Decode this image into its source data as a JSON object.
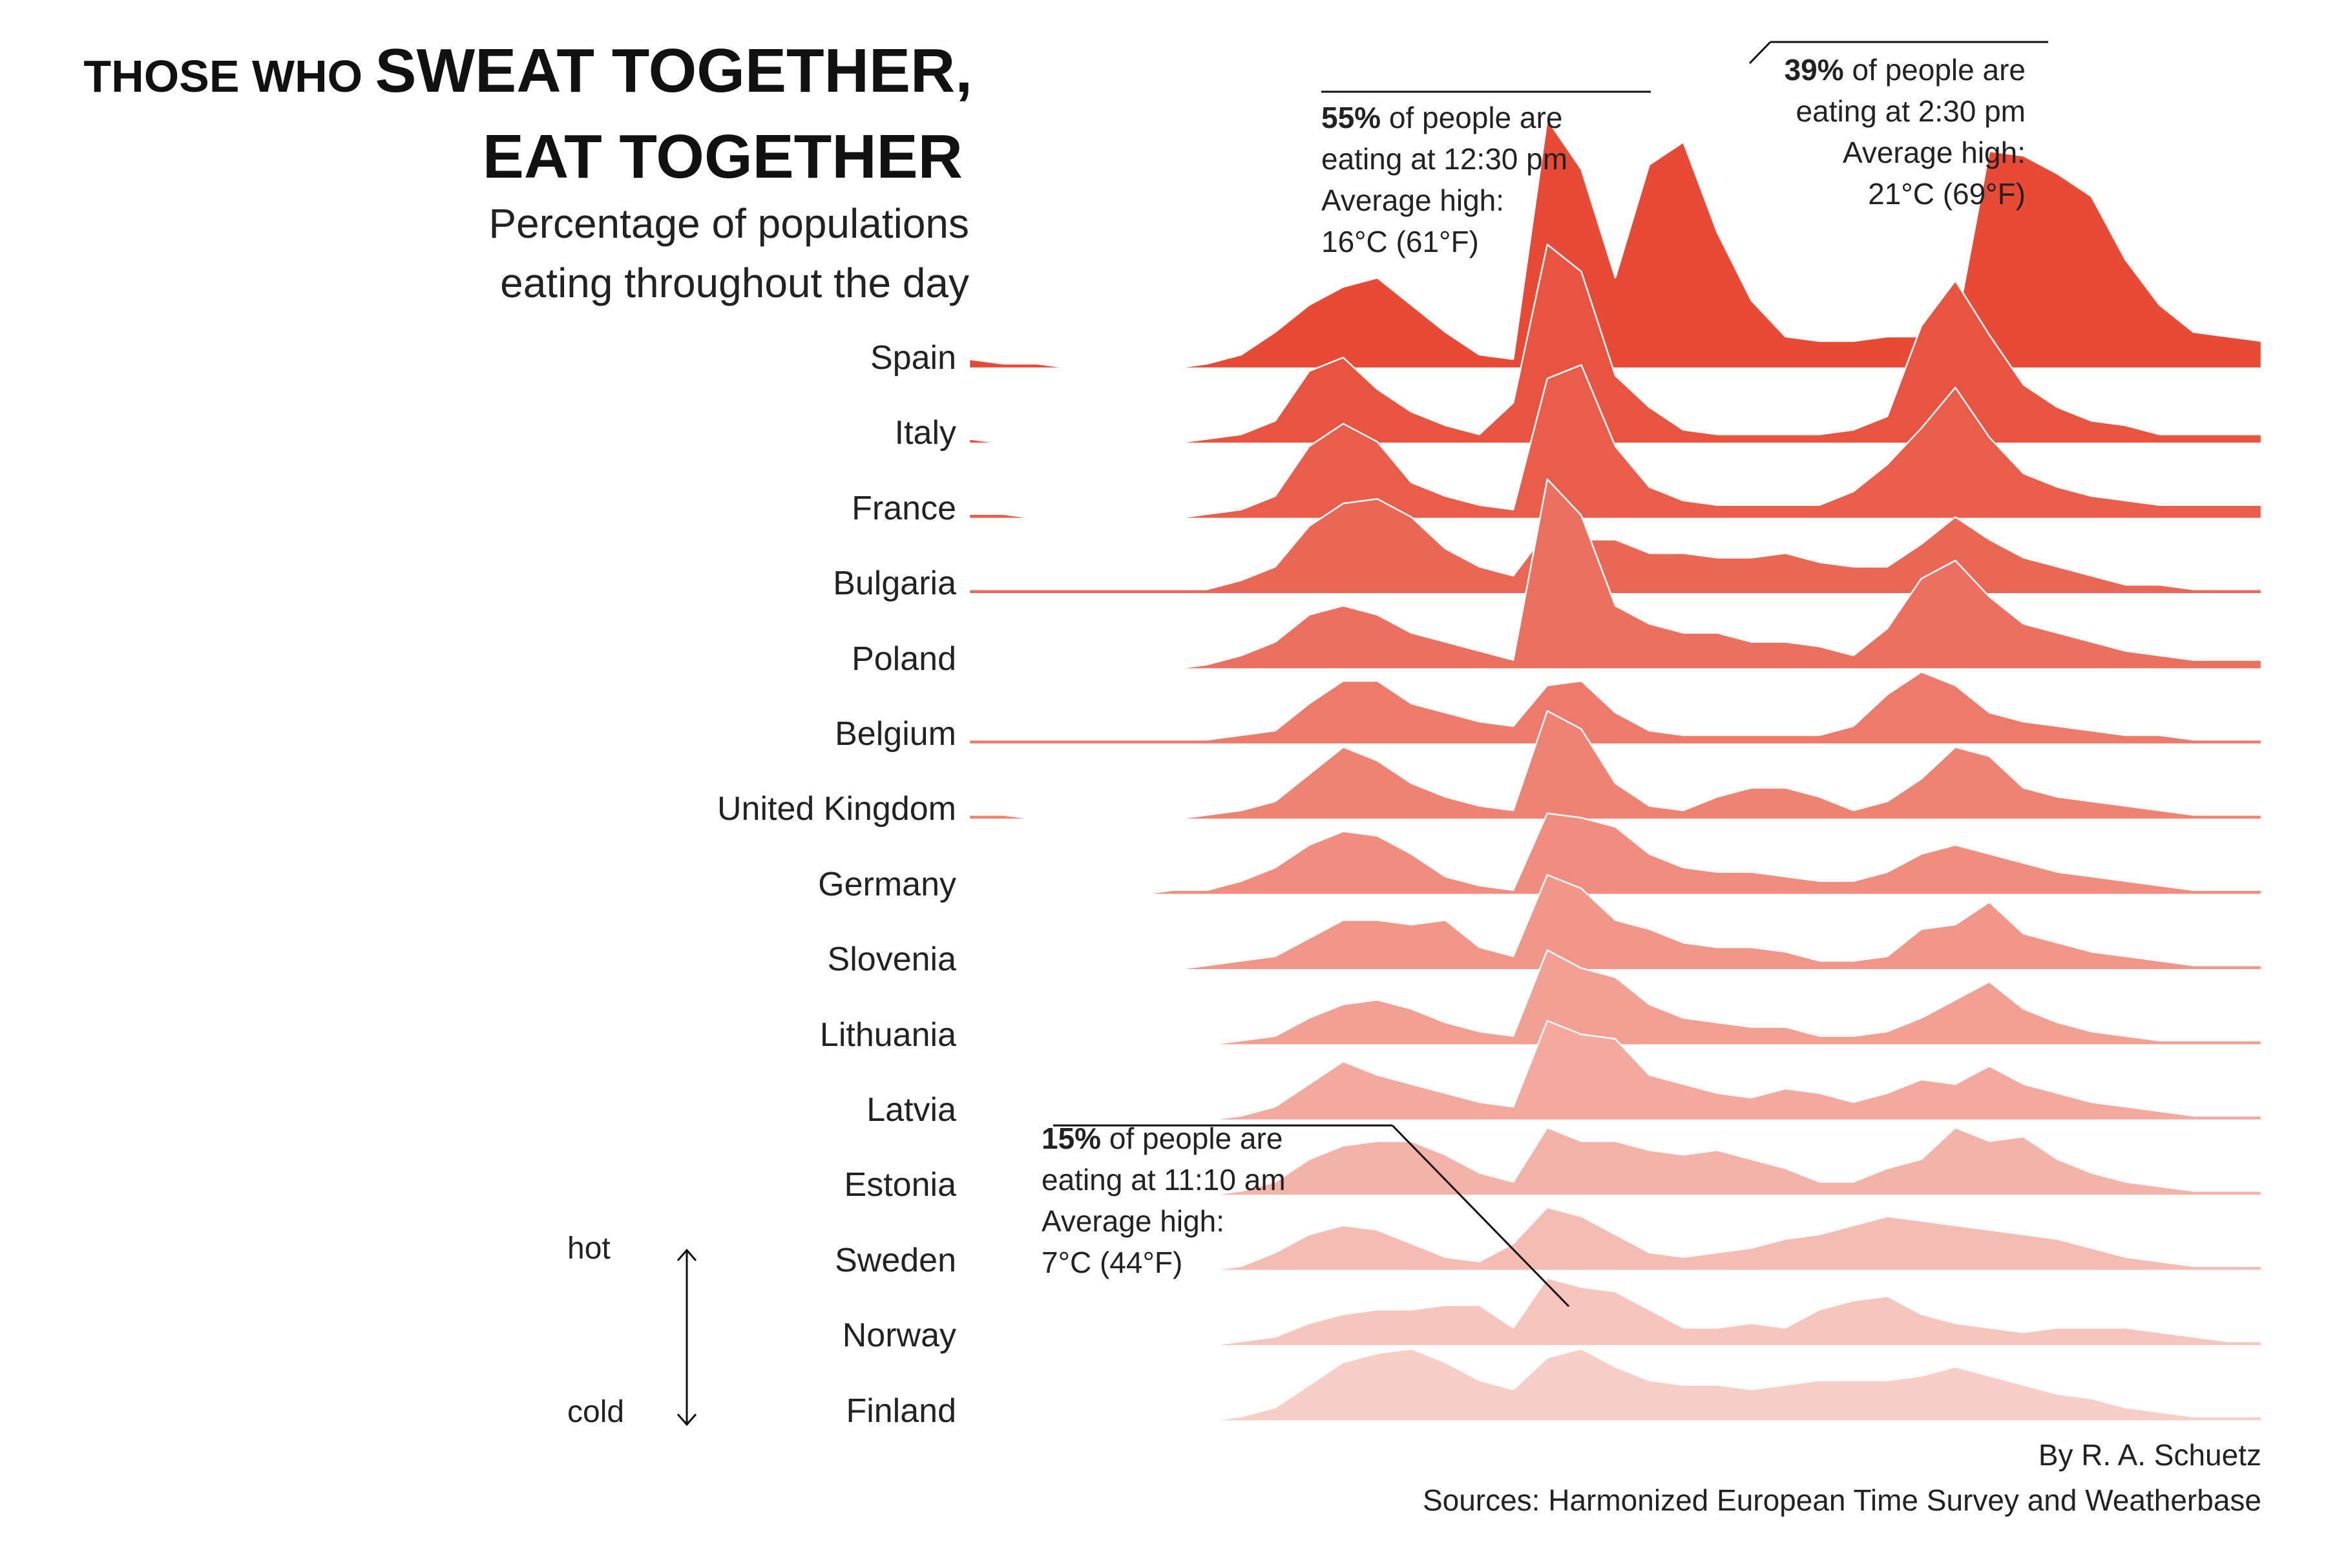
{
  "title": {
    "line1_small": "THOSE WHO ",
    "line1_big": "SWEAT TOGETHER,",
    "line2": "EAT TOGETHER"
  },
  "subtitle": {
    "line1": "Percentage of populations",
    "line2": "eating throughout the day"
  },
  "legend": {
    "hot": "hot",
    "cold": "cold"
  },
  "credits": {
    "author": "By R. A. Schuetz",
    "sources": "Sources: Harmonized European Time Survey and Weatherbase"
  },
  "annotations": [
    {
      "bold": "55%",
      "rest": " of people are",
      "line2": "eating at 12:30 pm",
      "line3": "Average high:",
      "line4": "16°C (61°F)"
    },
    {
      "bold": "39%",
      "rest": " of people are",
      "line2": "eating at 2:30 pm",
      "line3": "Average high:",
      "line4": "21°C (69°F)"
    },
    {
      "bold": "15%",
      "rest": " of people are",
      "line2": "eating at 11:10 am",
      "line3": "Average high:",
      "line4": "7°C (44°F)"
    }
  ],
  "colors": {
    "hot": "#e84a35",
    "cold": "#f7cfc8",
    "outline": "#ffffff",
    "annotation_line": "#111111"
  },
  "chart_data": {
    "type": "area",
    "series": [
      {
        "name": "Spain",
        "values": [
          2,
          1,
          1,
          0,
          0,
          0,
          0,
          1,
          3,
          8,
          14,
          18,
          20,
          14,
          8,
          3,
          2,
          55,
          44,
          20,
          45,
          50,
          30,
          15,
          7,
          6,
          6,
          7,
          7,
          8,
          48,
          47,
          43,
          38,
          24,
          14,
          8,
          7,
          6
        ]
      },
      {
        "name": "Italy",
        "values": [
          1,
          0,
          0,
          0,
          0,
          0,
          0,
          1,
          2,
          5,
          16,
          19,
          12,
          7,
          4,
          2,
          9,
          44,
          38,
          15,
          8,
          3,
          2,
          2,
          2,
          2,
          3,
          6,
          26,
          36,
          24,
          13,
          8,
          5,
          4,
          2,
          2,
          2,
          2
        ]
      },
      {
        "name": "France",
        "values": [
          1,
          1,
          0,
          0,
          0,
          0,
          0,
          1,
          2,
          5,
          16,
          21,
          17,
          8,
          5,
          3,
          2,
          31,
          34,
          16,
          7,
          4,
          3,
          3,
          3,
          3,
          6,
          12,
          20,
          29,
          18,
          10,
          7,
          5,
          4,
          3,
          3,
          3,
          3
        ]
      },
      {
        "name": "Bulgaria",
        "values": [
          1,
          1,
          1,
          1,
          1,
          1,
          1,
          1,
          3,
          6,
          15,
          20,
          21,
          17,
          10,
          6,
          4,
          14,
          12,
          12,
          9,
          9,
          8,
          8,
          9,
          7,
          6,
          6,
          11,
          17,
          12,
          8,
          6,
          4,
          2,
          2,
          1,
          1,
          1
        ]
      },
      {
        "name": "Poland",
        "values": [
          0,
          0,
          0,
          0,
          0,
          0,
          0,
          1,
          3,
          6,
          12,
          14,
          12,
          8,
          6,
          4,
          2,
          42,
          34,
          14,
          10,
          8,
          8,
          6,
          6,
          5,
          3,
          9,
          20,
          24,
          16,
          10,
          8,
          6,
          4,
          3,
          2,
          2,
          2
        ]
      },
      {
        "name": "Belgium",
        "values": [
          1,
          1,
          1,
          1,
          1,
          1,
          1,
          1,
          2,
          3,
          9,
          14,
          14,
          9,
          7,
          5,
          4,
          13,
          14,
          7,
          3,
          2,
          2,
          2,
          2,
          2,
          4,
          11,
          16,
          13,
          7,
          5,
          4,
          3,
          2,
          2,
          1,
          1,
          1
        ]
      },
      {
        "name": "United Kingdom",
        "values": [
          1,
          1,
          0,
          0,
          0,
          0,
          0,
          1,
          2,
          4,
          10,
          16,
          13,
          8,
          5,
          3,
          2,
          24,
          20,
          8,
          3,
          2,
          5,
          7,
          7,
          5,
          2,
          4,
          9,
          16,
          14,
          7,
          5,
          4,
          3,
          2,
          1,
          1,
          1
        ]
      },
      {
        "name": "Germany",
        "values": [
          0,
          0,
          0,
          0,
          0,
          0,
          1,
          1,
          3,
          6,
          11,
          14,
          13,
          9,
          4,
          2,
          1,
          18,
          17,
          15,
          9,
          6,
          5,
          5,
          4,
          3,
          3,
          5,
          9,
          11,
          9,
          7,
          5,
          4,
          3,
          2,
          1,
          1,
          1
        ]
      },
      {
        "name": "Slovenia",
        "values": [
          0,
          0,
          0,
          0,
          0,
          0,
          0,
          1,
          2,
          3,
          7,
          11,
          11,
          10,
          11,
          5,
          3,
          21,
          18,
          11,
          9,
          6,
          5,
          5,
          4,
          2,
          2,
          3,
          9,
          10,
          15,
          8,
          6,
          4,
          3,
          2,
          1,
          1,
          1
        ]
      },
      {
        "name": "Lithuania",
        "values": [
          0,
          0,
          0,
          0,
          0,
          0,
          0,
          0,
          1,
          2,
          6,
          9,
          10,
          8,
          5,
          3,
          2,
          21,
          17,
          15,
          9,
          6,
          5,
          4,
          4,
          2,
          2,
          3,
          6,
          10,
          14,
          8,
          5,
          3,
          2,
          1,
          1,
          1,
          1
        ]
      },
      {
        "name": "Latvia",
        "values": [
          0,
          0,
          0,
          0,
          0,
          0,
          0,
          0,
          1,
          3,
          8,
          13,
          10,
          8,
          6,
          4,
          3,
          22,
          19,
          18,
          10,
          8,
          6,
          5,
          7,
          6,
          4,
          6,
          9,
          8,
          12,
          8,
          6,
          4,
          3,
          2,
          1,
          1,
          1
        ]
      },
      {
        "name": "Estonia",
        "values": [
          0,
          0,
          0,
          0,
          0,
          0,
          0,
          0,
          1,
          3,
          8,
          11,
          12,
          12,
          9,
          5,
          3,
          15,
          12,
          12,
          10,
          9,
          10,
          8,
          6,
          3,
          3,
          6,
          8,
          15,
          12,
          13,
          8,
          5,
          3,
          2,
          1,
          1,
          1
        ]
      },
      {
        "name": "Sweden",
        "values": [
          0,
          0,
          0,
          0,
          0,
          0,
          0,
          0,
          1,
          4,
          8,
          10,
          9,
          6,
          3,
          2,
          6,
          14,
          12,
          8,
          4,
          3,
          4,
          5,
          7,
          8,
          10,
          12,
          11,
          10,
          9,
          8,
          7,
          5,
          3,
          2,
          1,
          1,
          1
        ]
      },
      {
        "name": "Norway",
        "values": [
          0,
          0,
          0,
          0,
          0,
          0,
          0,
          0,
          1,
          2,
          5,
          7,
          8,
          8,
          9,
          9,
          4,
          15,
          13,
          12,
          8,
          4,
          4,
          5,
          4,
          8,
          10,
          11,
          7,
          5,
          4,
          3,
          4,
          4,
          4,
          3,
          2,
          1,
          1
        ]
      },
      {
        "name": "Finland",
        "values": [
          0,
          0,
          0,
          0,
          0,
          0,
          0,
          0,
          1,
          3,
          8,
          13,
          15,
          16,
          13,
          9,
          7,
          14,
          16,
          12,
          9,
          8,
          8,
          7,
          8,
          9,
          9,
          9,
          10,
          12,
          10,
          8,
          6,
          5,
          3,
          2,
          1,
          1,
          1
        ]
      }
    ],
    "ylim": [
      0,
      55
    ],
    "grid": false,
    "legend": "none"
  }
}
